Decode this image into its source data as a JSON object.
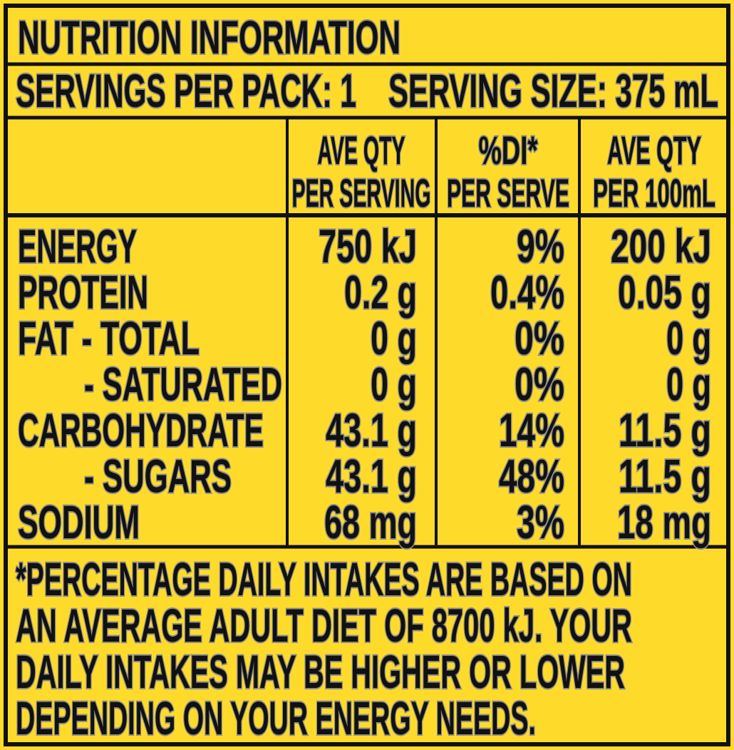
{
  "header": {
    "title": "NUTRITION INFORMATION",
    "servings_per_pack": "SERVINGS PER PACK: 1",
    "serving_size": "SERVING SIZE: 375 mL"
  },
  "table": {
    "columns": [
      [
        "AVE QTY",
        "PER SERVING"
      ],
      [
        "%DI*",
        "PER SERVE"
      ],
      [
        "AVE QTY",
        "PER 100mL"
      ]
    ],
    "rows": [
      [
        "ENERGY",
        "750 kJ",
        "9%",
        "200 kJ"
      ],
      [
        "PROTEIN",
        "0.2 g",
        "0.4%",
        "0.05 g"
      ],
      [
        "FAT  - TOTAL",
        "0 g",
        "0%",
        "0 g"
      ],
      [
        "- SATURATED",
        "0 g",
        "0%",
        "0 g"
      ],
      [
        "CARBOHYDRATE",
        "43.1 g",
        "14%",
        "11.5 g"
      ],
      [
        "- SUGARS",
        "43.1 g",
        "48%",
        "11.5 g"
      ],
      [
        "SODIUM",
        "68 mg",
        "3%",
        "18 mg"
      ]
    ]
  },
  "footnote": [
    "*PERCENTAGE DAILY INTAKES ARE BASED ON",
    "AN AVERAGE ADULT DIET OF 8700 kJ. YOUR",
    "DAILY INTAKES MAY BE HIGHER OR LOWER",
    "DEPENDING ON YOUR ENERGY NEEDS."
  ]
}
